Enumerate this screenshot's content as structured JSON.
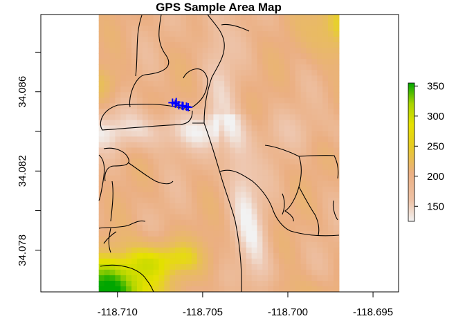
{
  "map": {
    "title": "GPS Sample Area Map",
    "xlim": [
      -118.7145,
      -118.6935
    ],
    "ylim": [
      34.0759,
      34.0899
    ],
    "x_ticks": [
      -118.71,
      -118.705,
      -118.7,
      -118.695
    ],
    "x_tick_labels": [
      "-118.710",
      "-118.705",
      "-118.700",
      "-118.695"
    ],
    "y_ticks": [
      34.078,
      34.082,
      34.086
    ],
    "y_tick_labels": [
      "34.078",
      "34.082",
      "34.086"
    ],
    "y_minor_ticks": [
      34.08,
      34.084,
      34.088
    ],
    "raster_extent": {
      "x": [
        -118.7111,
        -118.697
      ],
      "y": [
        34.0759,
        34.0899
      ]
    },
    "elevation_colors": {
      "low": "#f2f2f2",
      "mid": "#ebaf82",
      "upper": "#e6e100",
      "high": "#00a600"
    },
    "road_color": "#000000",
    "gps_color": "#0000ff",
    "gps_points": [
      [
        -118.70677,
        34.08545
      ],
      [
        -118.7066,
        34.0854
      ],
      [
        -118.7064,
        34.08532
      ],
      [
        -118.70615,
        34.08528
      ],
      [
        -118.70595,
        34.08525
      ],
      [
        -118.70585,
        34.08522
      ],
      [
        -118.70655,
        34.08548
      ],
      [
        -118.7062,
        34.0853
      ]
    ]
  },
  "legend": {
    "range": [
      125,
      355
    ],
    "ticks": [
      150,
      200,
      250,
      300,
      350
    ],
    "tick_labels": [
      "150",
      "200",
      "250",
      "300",
      "350"
    ]
  }
}
